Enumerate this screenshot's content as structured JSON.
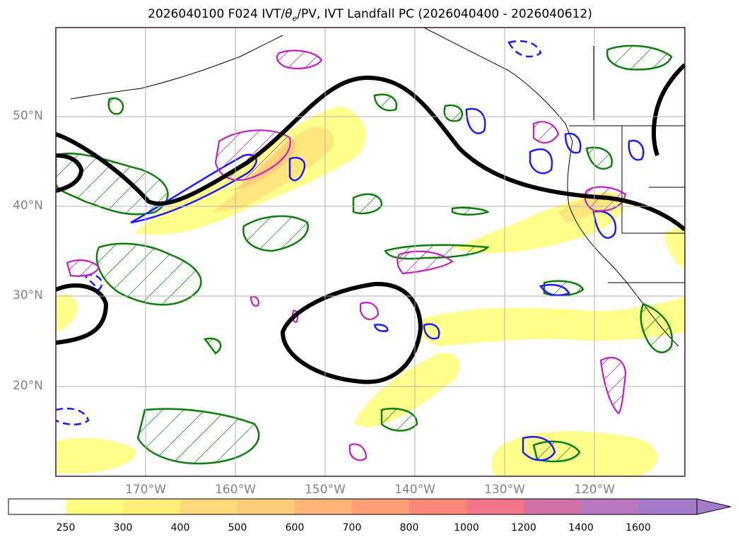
{
  "title": {
    "prefix": "2026040100 F024 IVT/",
    "theta": "θ",
    "sub": "e",
    "suffix": "/PV, IVT Landfall PC (2026040400 - 2026040612)"
  },
  "map": {
    "lat_labels": [
      "50°N",
      "40°N",
      "30°N",
      "20°N"
    ],
    "lon_labels": [
      "170°W",
      "160°W",
      "150°W",
      "140°W",
      "130°W",
      "120°W"
    ]
  },
  "colorbar": {
    "levels": [
      "250",
      "300",
      "400",
      "500",
      "600",
      "700",
      "800",
      "1000",
      "1200",
      "1400",
      "1600"
    ],
    "colors": [
      "#ffff80",
      "#ffee77",
      "#ffd97a",
      "#ffcc77",
      "#ffb577",
      "#ff9f77",
      "#ff8877",
      "#f37789",
      "#d070a5",
      "#b878c0",
      "#a57ac8"
    ]
  }
}
